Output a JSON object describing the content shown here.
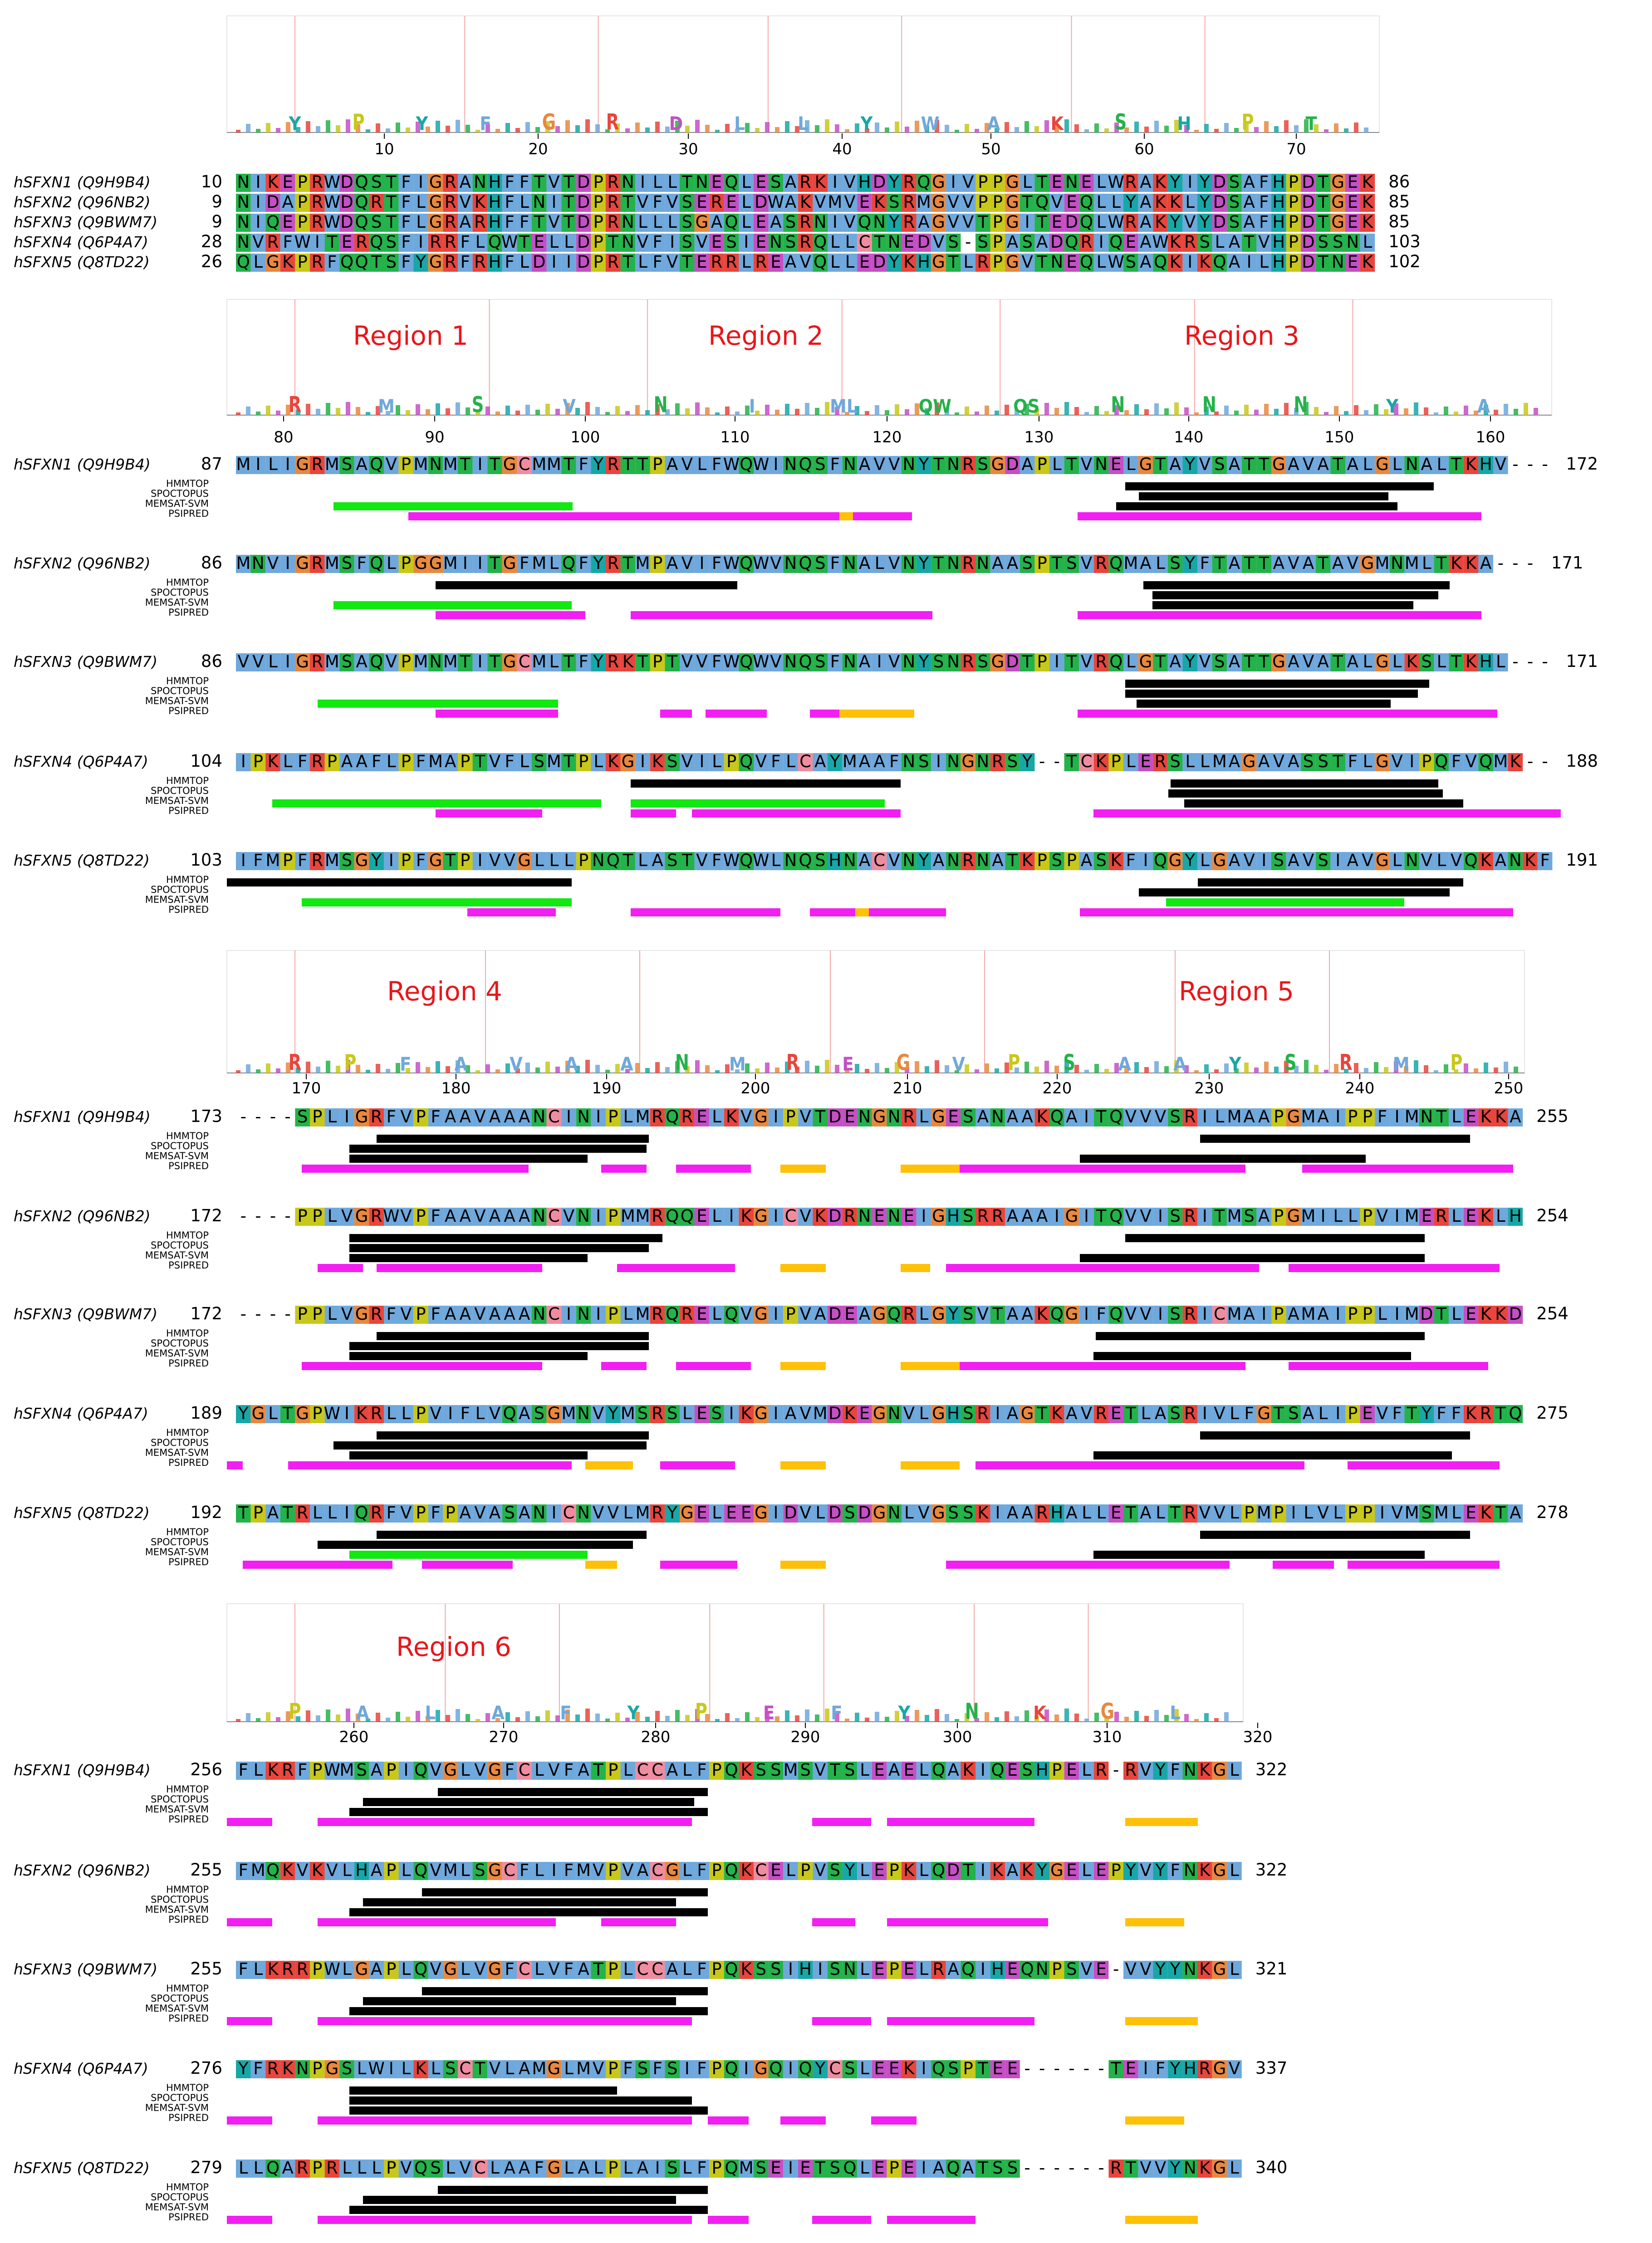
{
  "figure": {
    "description_label": "Sideroflexin family multiple sequence alignment with topology predictions",
    "methods": [
      "HMMTOP",
      "SPOCTOPUS",
      "MEMSAT-SVM",
      "PSIPRED"
    ],
    "colors": {
      "hmmtop": "#000000",
      "spoctopus": "#000000",
      "memsat": "#000000",
      "memsat_alt": "#12e812",
      "psipred_helix": "#f21ff2",
      "psipred_strand": "#ffc107",
      "region_label": "#e8161b",
      "logo_divider": "#f4a8a8"
    },
    "residue_colors": {
      "hydrophobic": "#6fa8dc",
      "K": "#e8453c",
      "R": "#e8453c",
      "D": "#c54fc5",
      "E": "#c54fc5",
      "G": "#e8883f",
      "P": "#c8c81a",
      "N": "#24b24a",
      "Q": "#24b24a",
      "S": "#24b24a",
      "T": "#24b24a",
      "H": "#18a7a7",
      "Y": "#18a7a7",
      "C": "#ef8ca0"
    }
  },
  "blocks": [
    {
      "id": "block1",
      "regions": [],
      "ticks": [
        10,
        20,
        30,
        40,
        50,
        60,
        70
      ],
      "logo_letters": [
        "Y",
        "P",
        "Y",
        "F",
        "G",
        "R",
        "D",
        "L",
        "L",
        "Y",
        "W",
        "A",
        "K",
        "S",
        "H",
        "P",
        "T"
      ],
      "rows": [
        {
          "name": "hSFXN1 (Q9H9B4)",
          "start": "10",
          "end": "86",
          "seq": "NIKEPRWDQSTFIGRANHFFTVTDPRNILLTNEQLESARKIVHDYRQGIVPPGLTENELWRAKYIYDSAFHPDTGEK"
        },
        {
          "name": "hSFXN2 (Q96NB2)",
          "start": "9",
          "end": "85",
          "seq": "NIDAPRWDQRTFLGRVKHFLNITDPRTVFVSERELDWAKVMVEKSRMGVVPPGTQVEQLLYAKKLYDSAFHPDTGEK"
        },
        {
          "name": "hSFXN3 (Q9BWM7)",
          "start": "9",
          "end": "85",
          "seq": "NIQEPRWDQSTFLGRARHFFTVTDPRNLLLSGAQLEASRNIVQNYRAGVVTPGITEDQLWRAKYVYDSAFHPDTGEK"
        },
        {
          "name": "hSFXN4 (Q6P4A7)",
          "start": "28",
          "end": "103",
          "seq": "NVRFWITERQSFIRRFLQWTELLDPTNVFISVESIENSRQLLCTNEDVS-SPASADQRIQEAWKRSLATVHPDSSNL"
        },
        {
          "name": "hSFXN5 (Q8TD22)",
          "start": "26",
          "end": "102",
          "seq": "QLGKPRFQQTSFYGRFRHFLDIIDPRTLFVTERRLREAVQLLEDYKHGTLRPGVTNEQLWSAQKIKQAILHPDTNEK"
        }
      ]
    },
    {
      "id": "block2",
      "regions": [
        "Region 1",
        "Region 2",
        "Region 3"
      ],
      "ticks": [
        80,
        90,
        100,
        110,
        120,
        130,
        140,
        150,
        160
      ],
      "logo_letters": [
        "R",
        "M",
        "S",
        "V",
        "N",
        "I",
        "ML",
        "QW",
        "QS",
        "N",
        "N",
        "N",
        "Y",
        "A"
      ],
      "rows": [
        {
          "name": "hSFXN1 (Q9H9B4)",
          "start": "87",
          "end": "172",
          "seq": "MILIGRMSAQVPMNMTITGCMMTFYRTTPAVLFWQWINQSFNAVVNYTNRSGDAPLTVNELGTAYVSATTGAVATALGLNALTKHV---"
        },
        {
          "name": "hSFXN2 (Q96NB2)",
          "start": "86",
          "end": "171",
          "seq": "MNVIGRMSFQLPGGMIITGFMLQFYRTMPAVIFWQWVNQSFNALVNYTNRNAASPTSVRQMALSYFTATTAVATAVGMNMLTKKA---"
        },
        {
          "name": "hSFXN3 (Q9BWM7)",
          "start": "86",
          "end": "171",
          "seq": "VVLIGRMSAQVPMNMTITGCMLTFYRKTPTVVFWQWVNQSFNAIVNYSNRSGDTPITVRQLGTAYVSATTGAVATALGLKSLTKHL---"
        },
        {
          "name": "hSFXN4 (Q6P4A7)",
          "start": "104",
          "end": "188",
          "seq": "IPKLFRPAAFLPFMAPTVFLSMTPLKGIKSVILPQVFLCAYMAAFNSINGNRSY--TCKPLERSLLMAGAVASSTFLGVIPQFVQMK--"
        },
        {
          "name": "hSFXN5 (Q8TD22)",
          "start": "103",
          "end": "191",
          "seq": "IFMPFRMSGYIPFGTPIVVGLLLPNQTLASTVFWQWLNQSHNACVNYANRNATKPSPASKFIQGYLGAVISAVSIAVGLNVLVQKANKF"
        }
      ]
    },
    {
      "id": "block3",
      "regions": [
        "Region 4",
        "Region 5"
      ],
      "ticks": [
        170,
        180,
        190,
        200,
        210,
        220,
        230,
        240,
        250
      ],
      "logo_letters": [
        "R",
        "P",
        "F",
        "A",
        "V",
        "A",
        "A",
        "N",
        "M",
        "R",
        "E",
        "G",
        "V",
        "P",
        "S",
        "A",
        "A",
        "Y",
        "S",
        "R",
        "M",
        "P"
      ],
      "rows": [
        {
          "name": "hSFXN1 (Q9H9B4)",
          "start": "173",
          "end": "255",
          "seq": "----SPLIGRFVPFAAVAAANCINIPLMRQRELKVGIPVTDENGNRLGESANAAKQAITQVVVSRILMAAPGMAIPPFIMNTLEKKA"
        },
        {
          "name": "hSFXN2 (Q96NB2)",
          "start": "172",
          "end": "254",
          "seq": "----PPLVGRWVPFAAVAAANCVNIPMMRQQELIKGICVKDRNENEIGHSRRAAAIGITQVVISRITMSAPGMILLPVIMERLEKLH"
        },
        {
          "name": "hSFXN3 (Q9BWM7)",
          "start": "172",
          "end": "254",
          "seq": "----PPLVGRFVPFAAVAAANCINIPLMRQRELQVGIPVADEAGQRLGYSVTAAKQGIFQVVISRICMAIPAMAIPPLIMDTLEKKD"
        },
        {
          "name": "hSFXN4 (Q6P4A7)",
          "start": "189",
          "end": "275",
          "seq": "YGLTGPWIKRLLPVIFLVQASGMNVYMSRSLESIKGIAVMDKEGNVLGHSRIAGTKAVRETLASRIVLFGTSALIPEVFTYFFKRTQ"
        },
        {
          "name": "hSFXN5 (Q8TD22)",
          "start": "192",
          "end": "278",
          "seq": "TPATRLLIQRFVPFPAVASANICNVVLMRYGELEEGIDVLDSDGNLVGSSKIAARHALLETALTRVVLPMPILVLPPIVMSMLEKTA"
        }
      ]
    },
    {
      "id": "block4",
      "regions": [
        "Region 6"
      ],
      "ticks": [
        260,
        270,
        280,
        290,
        300,
        310,
        320
      ],
      "logo_letters": [
        "P",
        "A",
        "L",
        "A",
        "F",
        "Y",
        "P",
        "E",
        "F",
        "Y",
        "N",
        "K",
        "G",
        "L"
      ],
      "rows": [
        {
          "name": "hSFXN1 (Q9H9B4)",
          "start": "256",
          "end": "322",
          "seq": "FLKRFPWMSAPIQVGLVGFCLVFATPLCCALFPQKSSMSVTSLEAELQAKIQESHPELR-RVYFNKGL"
        },
        {
          "name": "hSFXN2 (Q96NB2)",
          "start": "255",
          "end": "322",
          "seq": "FMQKVKVLHAPLQVMLSGCFLIFMVPVACGLFPQKCELPVSYLEPKLQDTIKAKYGELEPYVYFNKGL"
        },
        {
          "name": "hSFXN3 (Q9BWM7)",
          "start": "255",
          "end": "321",
          "seq": "FLKRRPWLGAPLQVGLVGFCLVFATPLCCALFPQKSSIHISNLEPELRAQIHEQNPSVE-VVYYNKGL"
        },
        {
          "name": "hSFXN4 (Q6P4A7)",
          "start": "276",
          "end": "337",
          "seq": "YFRKNPGSLWILKLSCTVLAMGLMVPFSFSIFPQIGQIQYCSLEEKIQSPTEE------TEIFYHRGV"
        },
        {
          "name": "hSFXN5 (Q8TD22)",
          "start": "279",
          "end": "340",
          "seq": "LLQARPRLLLPVQSLVCLAAFGLALPLAISLFPQMSEIETSQLEPEIAQATSS------RTVVYNKGL"
        }
      ]
    }
  ]
}
